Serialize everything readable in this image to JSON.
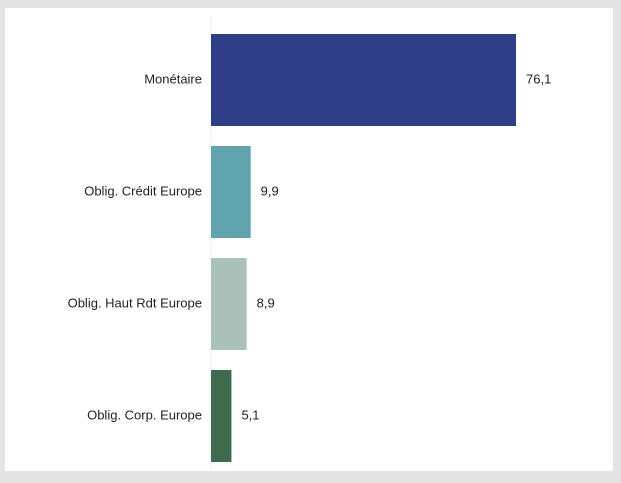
{
  "chart_data": {
    "type": "barh",
    "categories": [
      "Monétaire",
      "Oblig. Crédit Europe",
      "Oblig. Haut Rdt Europe",
      "Oblig. Corp. Europe"
    ],
    "values": [
      76.1,
      9.9,
      8.9,
      5.1
    ],
    "value_labels": [
      "76,1",
      "9,9",
      "8,9",
      "5,1"
    ],
    "colors": [
      "#2f3e86",
      "#5fa3ad",
      "#abc0b8",
      "#3f6a4d"
    ]
  }
}
